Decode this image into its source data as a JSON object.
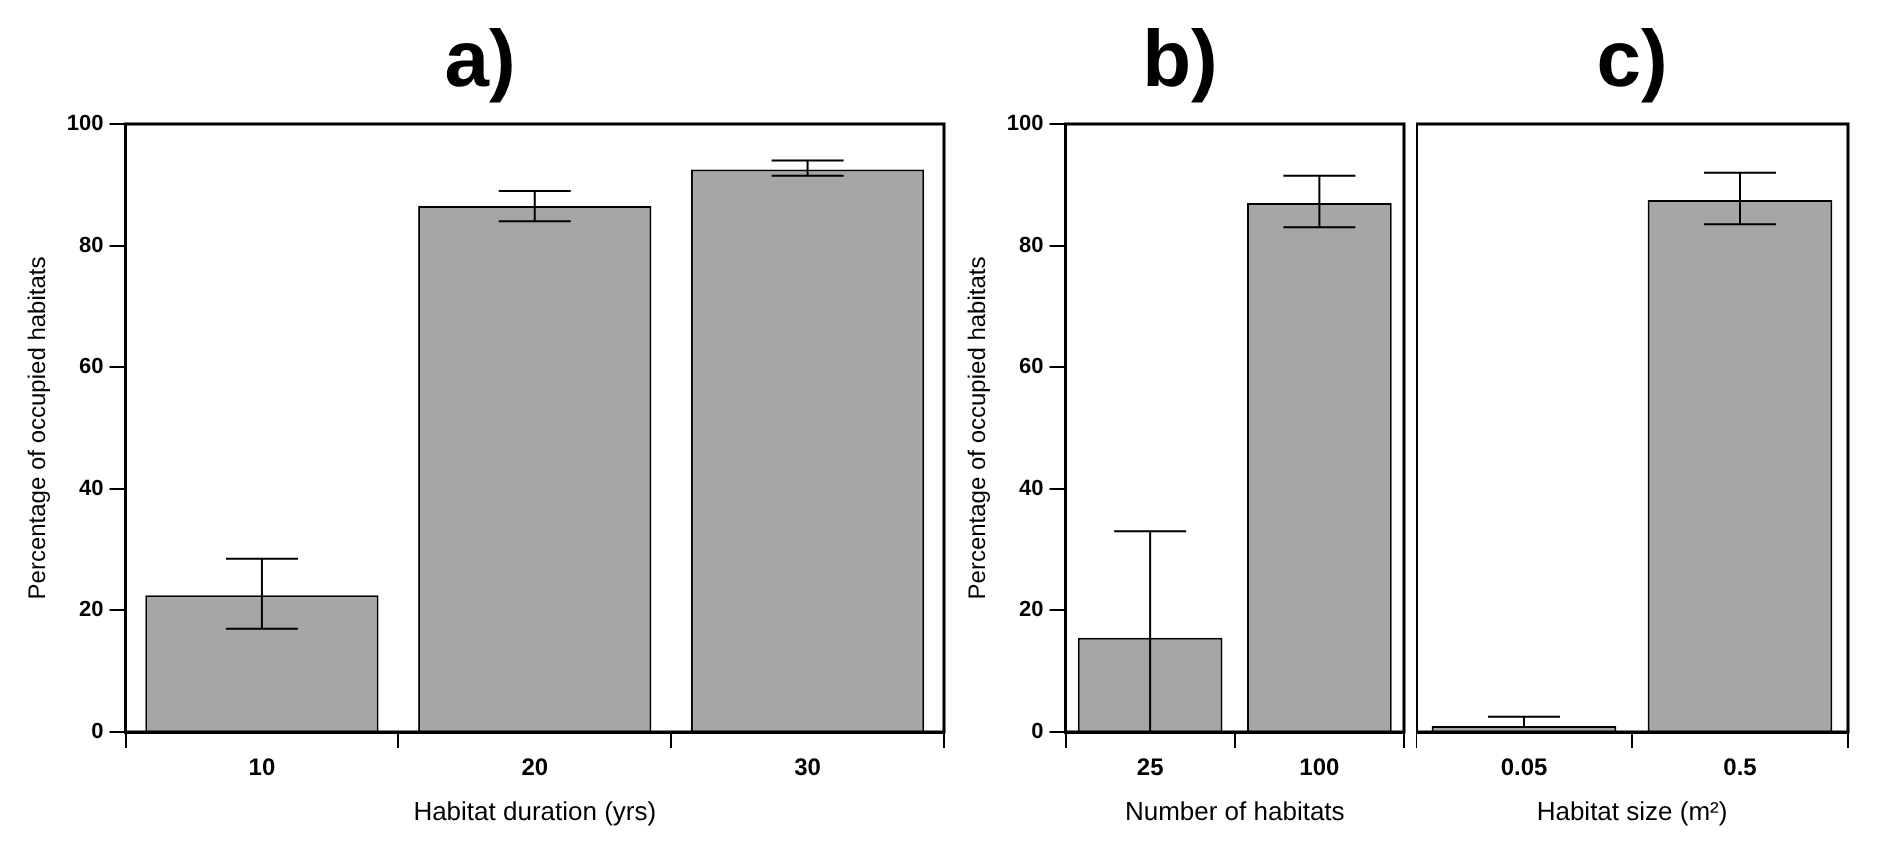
{
  "chart_data": [
    {
      "type": "bar",
      "title": "a)",
      "xlabel": "Habitat duration (yrs)",
      "ylabel": "Percentage of occupied habitats",
      "categories": [
        "10",
        "20",
        "30"
      ],
      "values": [
        22.5,
        86.5,
        92.5
      ],
      "errors": [
        [
          17,
          28.5
        ],
        [
          84,
          89
        ],
        [
          91.5,
          94
        ]
      ],
      "color": "#a6a6a6",
      "ylim": [
        0,
        100
      ],
      "yticks": [
        0,
        20,
        40,
        60,
        80,
        100
      ],
      "grid": false,
      "legend": false
    },
    {
      "type": "bar",
      "title": "b)",
      "xlabel": "Number of habitats",
      "ylabel": "Percentage of occupied habitats",
      "categories": [
        "25",
        "100"
      ],
      "values": [
        15.5,
        87
      ],
      "errors": [
        [
          0,
          33
        ],
        [
          83,
          91.5
        ]
      ],
      "color": "#a6a6a6",
      "ylim": [
        0,
        100
      ],
      "yticks": [
        0,
        20,
        40,
        60,
        80,
        100
      ],
      "grid": false,
      "legend": false
    },
    {
      "type": "bar",
      "title": "c)",
      "xlabel": "Habitat size (m²)",
      "categories": [
        "0.05",
        "0.5"
      ],
      "values": [
        1,
        87.5
      ],
      "errors": [
        [
          1,
          2.5
        ],
        [
          83.5,
          92
        ]
      ],
      "color": "#a6a6a6",
      "ylim": [
        0,
        100
      ],
      "yticks": [
        0,
        20,
        40,
        60,
        80,
        100
      ],
      "grid": false,
      "legend": false,
      "tick_labels": "x"
    }
  ]
}
